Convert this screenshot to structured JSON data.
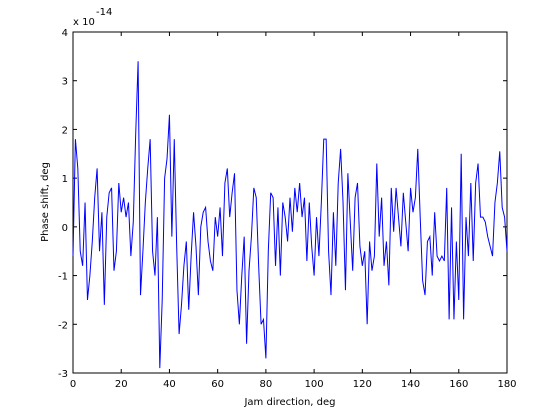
{
  "chart_data": {
    "type": "line",
    "xlabel": "Jam direction, deg",
    "ylabel": "Phase shift, deg",
    "y_multiplier": {
      "base": "x 10",
      "exponent": "-14"
    },
    "xlim": [
      0,
      180
    ],
    "xticks": [
      0,
      20,
      40,
      60,
      80,
      100,
      120,
      140,
      160,
      180
    ],
    "ylim": [
      -3,
      4
    ],
    "yticks": [
      -3,
      -2,
      -1,
      0,
      1,
      2,
      3,
      4
    ],
    "grid": false,
    "x": [
      0,
      1,
      2,
      3,
      4,
      5,
      6,
      7,
      8,
      9,
      10,
      11,
      12,
      13,
      14,
      15,
      16,
      17,
      18,
      19,
      20,
      21,
      22,
      23,
      24,
      25,
      26,
      27,
      28,
      29,
      30,
      31,
      32,
      33,
      34,
      35,
      36,
      37,
      38,
      39,
      40,
      41,
      42,
      43,
      44,
      45,
      46,
      47,
      48,
      49,
      50,
      51,
      52,
      53,
      54,
      55,
      56,
      57,
      58,
      59,
      60,
      61,
      62,
      63,
      64,
      65,
      66,
      67,
      68,
      69,
      70,
      71,
      72,
      73,
      74,
      75,
      76,
      77,
      78,
      79,
      80,
      81,
      82,
      83,
      84,
      85,
      86,
      87,
      88,
      89,
      90,
      91,
      92,
      93,
      94,
      95,
      96,
      97,
      98,
      99,
      100,
      101,
      102,
      103,
      104,
      105,
      106,
      107,
      108,
      109,
      110,
      111,
      112,
      113,
      114,
      115,
      116,
      117,
      118,
      119,
      120,
      121,
      122,
      123,
      124,
      125,
      126,
      127,
      128,
      129,
      130,
      131,
      132,
      133,
      134,
      135,
      136,
      137,
      138,
      139,
      140,
      141,
      142,
      143,
      144,
      145,
      146,
      147,
      148,
      149,
      150,
      151,
      152,
      153,
      154,
      155,
      156,
      157,
      158,
      159,
      160,
      161,
      162,
      163,
      164,
      165,
      166,
      167,
      168,
      169,
      170,
      171,
      172,
      173,
      174,
      175,
      176,
      177,
      178,
      179,
      180
    ],
    "series": [
      {
        "color": "#0000ff",
        "values": [
          -0.6,
          1.8,
          1.2,
          -0.5,
          -0.8,
          0.5,
          -1.5,
          -1.0,
          -0.3,
          0.6,
          1.2,
          -0.5,
          0.3,
          -1.6,
          0.2,
          0.7,
          0.8,
          -0.9,
          -0.5,
          0.9,
          0.3,
          0.6,
          0.2,
          0.5,
          -0.6,
          0.1,
          1.9,
          3.4,
          -1.4,
          -0.5,
          0.5,
          1.2,
          1.8,
          -0.5,
          -1.0,
          0.2,
          -2.9,
          -1.5,
          1.0,
          1.4,
          2.3,
          -0.2,
          1.8,
          -0.4,
          -2.2,
          -1.6,
          -0.8,
          -0.3,
          -1.7,
          -0.6,
          0.3,
          -0.4,
          -1.4,
          0.0,
          0.3,
          0.4,
          -0.3,
          -0.7,
          -0.9,
          0.2,
          -0.2,
          0.4,
          -0.6,
          0.9,
          1.2,
          0.2,
          0.7,
          1.1,
          -1.3,
          -2.0,
          -1.0,
          -0.2,
          -2.4,
          -0.9,
          -0.2,
          0.8,
          0.6,
          -0.8,
          -2.0,
          -1.9,
          -2.7,
          -0.5,
          0.7,
          0.6,
          -0.8,
          0.4,
          -1.0,
          0.5,
          0.2,
          -0.3,
          0.6,
          -0.1,
          0.8,
          0.3,
          0.9,
          0.2,
          0.6,
          -0.7,
          0.5,
          -0.4,
          -1.0,
          0.2,
          -0.6,
          0.5,
          1.8,
          1.8,
          -0.5,
          -1.4,
          0.3,
          -0.8,
          0.9,
          1.6,
          0.5,
          -1.3,
          1.1,
          0.1,
          -0.9,
          0.6,
          0.9,
          -0.4,
          -0.8,
          -0.5,
          -2.0,
          -0.3,
          -0.9,
          -0.6,
          1.3,
          -0.2,
          0.6,
          -0.8,
          -0.3,
          -1.2,
          0.8,
          -0.1,
          0.8,
          0.2,
          -0.4,
          0.7,
          0.1,
          -0.5,
          0.8,
          0.3,
          0.6,
          1.6,
          0.2,
          -1.1,
          -1.4,
          -0.3,
          -0.2,
          -1.0,
          0.3,
          -0.6,
          -0.7,
          -0.6,
          -0.7,
          0.8,
          -1.9,
          0.4,
          -1.9,
          -0.3,
          -1.5,
          1.5,
          -1.9,
          0.2,
          -0.6,
          0.9,
          -0.7,
          0.9,
          1.3,
          0.2,
          0.2,
          0.1,
          -0.2,
          -0.4,
          -0.6,
          0.5,
          0.9,
          1.55,
          0.4,
          0.2,
          -0.5
        ]
      }
    ]
  }
}
